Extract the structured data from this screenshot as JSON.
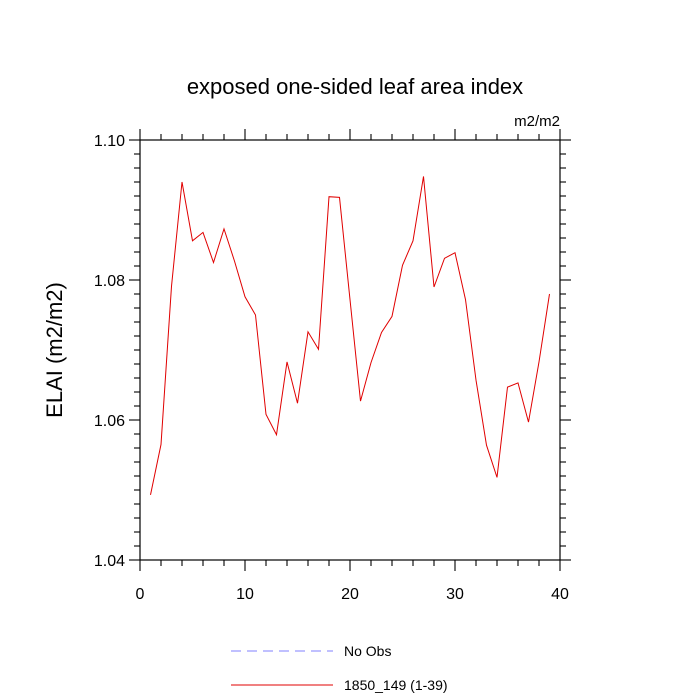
{
  "chart_data": {
    "type": "line",
    "title": "exposed one-sided leaf area index",
    "units_label": "m2/m2",
    "xlabel": "",
    "ylabel": "ELAI  (m2/m2)",
    "xlim": [
      0,
      40
    ],
    "ylim": [
      1.04,
      1.1
    ],
    "x_ticks": [
      0,
      10,
      20,
      30,
      40
    ],
    "x_tick_labels": [
      "0",
      "10",
      "20",
      "30",
      "40"
    ],
    "x_minor_step": 2,
    "y_ticks": [
      1.04,
      1.06,
      1.08,
      1.1
    ],
    "y_tick_labels": [
      "1.04",
      "1.06",
      "1.08",
      "1.10"
    ],
    "y_minor_step": 0.002,
    "grid": false,
    "legend_position": "bottom-center",
    "series": [
      {
        "name": "No Obs",
        "color": "#8080ff",
        "dash": "dashed",
        "x": [],
        "values": []
      },
      {
        "name": "1850_149 (1-39)",
        "color": "#e00000",
        "dash": "solid",
        "x": [
          1,
          2,
          3,
          4,
          5,
          6,
          7,
          8,
          9,
          10,
          11,
          12,
          13,
          14,
          15,
          16,
          17,
          18,
          19,
          20,
          21,
          22,
          23,
          24,
          25,
          26,
          27,
          28,
          29,
          30,
          31,
          32,
          33,
          34,
          35,
          36,
          37,
          38,
          39
        ],
        "values": [
          1.0493,
          1.0565,
          1.0791,
          1.094,
          1.0856,
          1.0868,
          1.0825,
          1.0873,
          1.0827,
          1.0776,
          1.075,
          1.0608,
          1.0579,
          1.0683,
          1.0624,
          1.0726,
          1.0701,
          1.0919,
          1.0918,
          1.0772,
          1.0627,
          1.0682,
          1.0725,
          1.0748,
          1.0821,
          1.0856,
          1.0948,
          1.079,
          1.0831,
          1.0839,
          1.0772,
          1.0657,
          1.0564,
          1.0518,
          1.0647,
          1.0653,
          1.0597,
          1.0683,
          1.078
        ]
      }
    ]
  }
}
